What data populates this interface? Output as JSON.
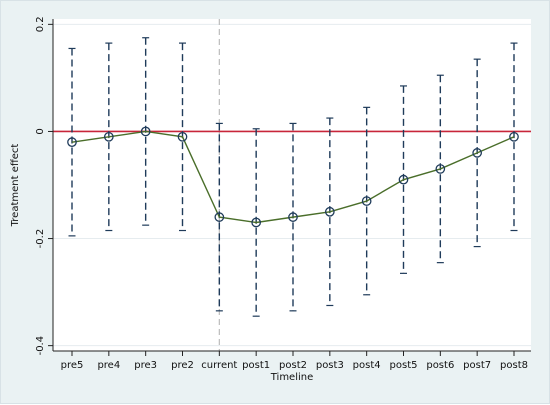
{
  "chart_data": {
    "type": "line",
    "xlabel": "Timeline",
    "ylabel": "Treatment effect",
    "categories": [
      "pre5",
      "pre4",
      "pre3",
      "pre2",
      "current",
      "post1",
      "post2",
      "post3",
      "post4",
      "post5",
      "post6",
      "post7",
      "post8"
    ],
    "series": [
      {
        "values": [
          -0.02,
          -0.01,
          0.0,
          -0.01,
          -0.16,
          -0.17,
          -0.16,
          -0.15,
          -0.13,
          -0.09,
          -0.07,
          -0.04,
          -0.01
        ],
        "ci_upper": [
          0.155,
          0.165,
          0.175,
          0.165,
          0.015,
          0.005,
          0.015,
          0.025,
          0.045,
          0.085,
          0.105,
          0.135,
          0.165
        ],
        "ci_lower": [
          -0.195,
          -0.185,
          -0.175,
          -0.185,
          -0.335,
          -0.345,
          -0.335,
          -0.325,
          -0.305,
          -0.265,
          -0.245,
          -0.215,
          -0.185
        ]
      }
    ],
    "yticks": [
      0.2,
      0,
      -0.2,
      -0.4
    ],
    "ytick_labels": [
      "0.2",
      "0",
      "-0.2",
      "-0.4"
    ],
    "ylim": [
      -0.41,
      0.21
    ],
    "reference_line_y": 0,
    "reference_line_at": "current",
    "grid": "horizontal",
    "legend": "none",
    "colors": {
      "background": "#eaf2f3",
      "plot_area": "#ffffff",
      "line": "#4a6e2a",
      "marker": "#1f3b5a",
      "ci": "#1f3b5a",
      "zero_line": "#c8263a",
      "vline": "#bcbcbc",
      "grid": "#e6ecef"
    }
  }
}
